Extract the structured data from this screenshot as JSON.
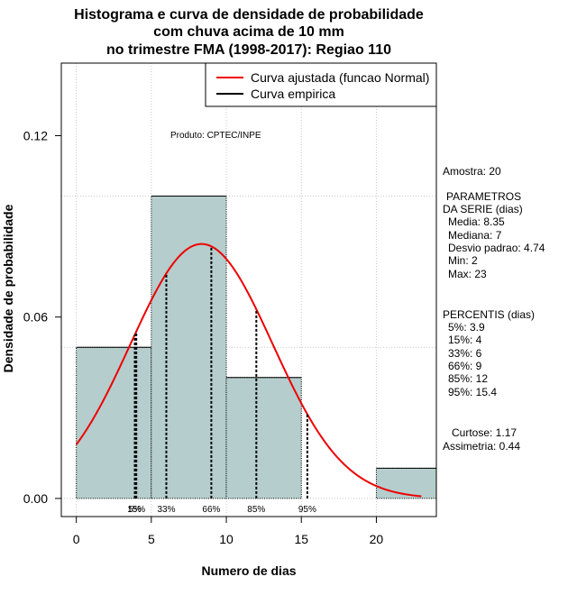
{
  "chart_data": {
    "type": "histogram",
    "title_lines": [
      "Histograma e curva de densidade de probabilidade",
      "com chuva acima de 10 mm",
      "no trimestre FMA (1998-2017): Regiao 110"
    ],
    "xlabel": "Numero de dias",
    "ylabel": "Densidade de probabilidade",
    "xlim": [
      -1,
      24
    ],
    "ylim": [
      -0.006,
      0.144
    ],
    "x_ticks": [
      0,
      5,
      10,
      15,
      20
    ],
    "y_ticks": [
      0.0,
      0.06,
      0.12
    ],
    "y_tick_labels": [
      "0.00",
      "0.06",
      "0.12"
    ],
    "grid_x": [
      0,
      5,
      10,
      15,
      20
    ],
    "grid_y": [
      0.0,
      0.05,
      0.1
    ],
    "bars": [
      {
        "x0": 0,
        "x1": 5,
        "density": 0.05
      },
      {
        "x0": 5,
        "x1": 10,
        "density": 0.1
      },
      {
        "x0": 10,
        "x1": 15,
        "density": 0.04
      },
      {
        "x0": 15,
        "x1": 20,
        "density": 0.0
      },
      {
        "x0": 20,
        "x1": 25,
        "density": 0.01
      }
    ],
    "bar_color": "#b5cdcd",
    "normal_curve": {
      "mean": 8.35,
      "sd": 4.74,
      "x_from": 0,
      "x_to": 23,
      "color": "#ee0000"
    },
    "percentile_lines": [
      {
        "label": "5%",
        "x": 3.9
      },
      {
        "label": "15%",
        "x": 4
      },
      {
        "label": "33%",
        "x": 6
      },
      {
        "label": "66%",
        "x": 9
      },
      {
        "label": "85%",
        "x": 12
      },
      {
        "label": "95%",
        "x": 15.4
      }
    ],
    "legend": [
      {
        "label": "Curva ajustada (funcao Normal)",
        "color": "#ee0000"
      },
      {
        "label": "Curva empirica",
        "color": "#000000"
      }
    ],
    "legend_position": "top-right",
    "annotation": "Produto: CPTEC/INPE"
  },
  "side_panel": {
    "amostra": "Amostra: 20",
    "param_header_1": "PARAMETROS",
    "param_header_2": "DA SERIE (dias)",
    "media": "Media: 8.35",
    "mediana": "Mediana: 7",
    "desvio": "Desvio padrao: 4.74",
    "min": "Min: 2",
    "max": "Max: 23",
    "perc_header": "PERCENTIS (dias)",
    "p5": "5%: 3.9",
    "p15": "15%: 4",
    "p33": "33%: 6",
    "p66": "66%: 9",
    "p85": "85%: 12",
    "p95": "95%: 15.4",
    "curtose": "Curtose: 1.17",
    "assimetria": "Assimetria: 0.44"
  }
}
